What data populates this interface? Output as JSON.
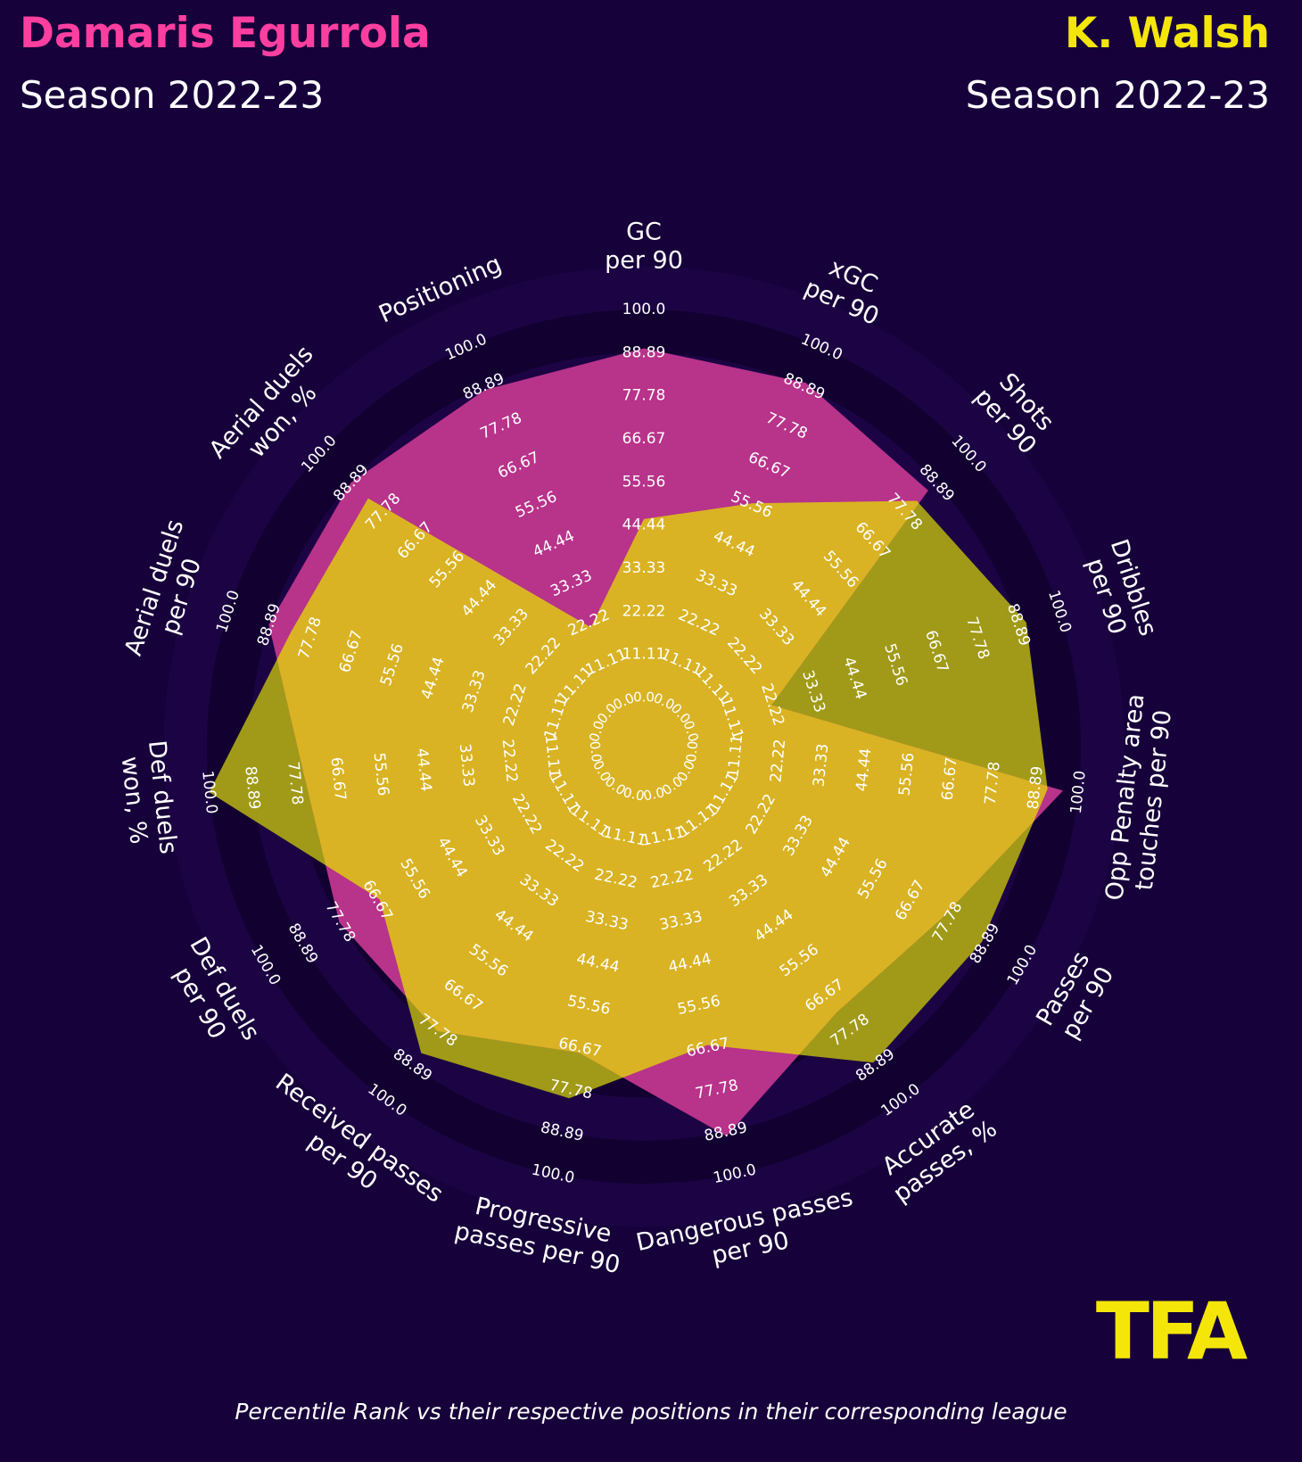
{
  "header": {
    "player1": {
      "name": "Damaris Egurrola",
      "season": "Season 2022-23",
      "color": "#ff3fa0"
    },
    "player2": {
      "name": "K. Walsh",
      "season": "Season 2022-23",
      "color": "#f5e60a"
    }
  },
  "footer": "Percentile Rank vs their respective positions in their corresponding league",
  "logo_text": "TFA",
  "colors": {
    "background": "#16013a",
    "ring_dark": "#120030",
    "ring_light": "#1c0444",
    "player1_fill": "#b8338a",
    "player2_fill": "#d9b324",
    "player2_over_bg": "#a09a18",
    "label_text": "#ffffff",
    "logo": "#f5e60a"
  },
  "chart_data": {
    "type": "radar",
    "scale_max": 100,
    "ring_labels": [
      "0.0",
      "11.11",
      "22.22",
      "33.33",
      "44.44",
      "55.56",
      "66.67",
      "77.78",
      "88.89",
      "100.0"
    ],
    "categories": [
      "GC per 90",
      "xGC per 90",
      "Shots per 90",
      "Dribbles per 90",
      "Opp Penalty area touches per 90",
      "Passes per 90",
      "Accurate passes, %",
      "Dangerous passes per 90",
      "Progressive passes per 90",
      "Received passes per 90",
      "Def duels per 90",
      "Def duels won, %",
      "Aerial duels per 90",
      "Aerial duels won, %",
      "Positioning"
    ],
    "category_lines": [
      [
        "GC",
        "per 90"
      ],
      [
        "xGC",
        "per 90"
      ],
      [
        "Shots",
        "per 90"
      ],
      [
        "Dribbles",
        "per 90"
      ],
      [
        "Opp Penalty area",
        "touches per 90"
      ],
      [
        "Passes",
        "per 90"
      ],
      [
        "Accurate",
        "passes, %"
      ],
      [
        "Dangerous passes",
        "per 90"
      ],
      [
        "Progressive",
        "passes per 90"
      ],
      [
        "Received passes",
        "per 90"
      ],
      [
        "Def duels",
        "per 90"
      ],
      [
        "Def duels",
        "won, %"
      ],
      [
        "Aerial duels",
        "per 90"
      ],
      [
        "Aerial duels",
        "won, %"
      ],
      [
        "Positioning"
      ]
    ],
    "series": [
      {
        "name": "Damaris Egurrola",
        "values": [
          90,
          90,
          86,
          22,
          96,
          76,
          72,
          90,
          68,
          78,
          78,
          75,
          89,
          89,
          88
        ]
      },
      {
        "name": "K. Walsh",
        "values": [
          46,
          56,
          82,
          91,
          92,
          88,
          88,
          66,
          80,
          85,
          66,
          100,
          83,
          83,
          21
        ]
      }
    ]
  }
}
